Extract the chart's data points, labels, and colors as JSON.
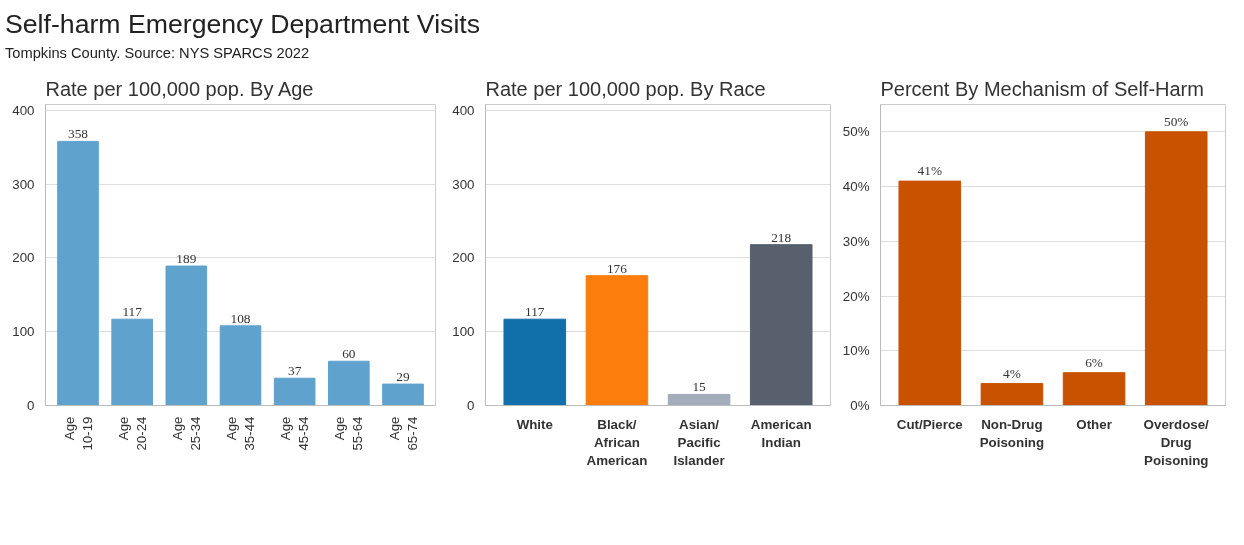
{
  "chart_data": [
    {
      "type": "other",
      "title": "Self-harm Emergency Department Visits",
      "subtitle": "Tompkins County. Source: NYS SPARCS 2022"
    },
    {
      "type": "bar",
      "title": "Rate per 100,000 pop. By Age",
      "categories": [
        "Age 10-19",
        "Age 20-24",
        "Age 25-34",
        "Age 35-44",
        "Age 45-54",
        "Age 55-64",
        "Age 65-74"
      ],
      "values": [
        358,
        117,
        189,
        108,
        37,
        60,
        29
      ],
      "color": "#5fa2cd",
      "ylim": [
        0,
        408
      ],
      "yticks": [
        0,
        100,
        200,
        300,
        400
      ],
      "grid": "y",
      "data_labels": true
    },
    {
      "type": "bar",
      "title": "Rate per 100,000 pop. By Race",
      "categories": [
        "White",
        "Black/African American",
        "Asian/Pacific Islander",
        "American Indian"
      ],
      "values": [
        117,
        176,
        15,
        218
      ],
      "colors": [
        "#1170aa",
        "#fc7d0b",
        "#a3acb9",
        "#57606c"
      ],
      "ylim": [
        0,
        408
      ],
      "yticks": [
        0,
        100,
        200,
        300,
        400
      ],
      "grid": "y",
      "data_labels": true
    },
    {
      "type": "bar",
      "title": "Percent By Mechanism of Self-Harm",
      "categories": [
        "Cut/Pierce",
        "Non-Drug Poisoning",
        "Other",
        "Overdose/Drug Poisoning"
      ],
      "values": [
        41,
        4,
        6,
        50
      ],
      "color": "#c85200",
      "value_labels": [
        "41%",
        "4%",
        "6%",
        "50%"
      ],
      "ylim": [
        0,
        55
      ],
      "yticks": [
        {
          "value": 0,
          "label": "0%"
        },
        {
          "value": 10,
          "label": "10%"
        },
        {
          "value": 20,
          "label": "20%"
        },
        {
          "value": 30,
          "label": "30%"
        },
        {
          "value": 40,
          "label": "40%"
        },
        {
          "value": 50,
          "label": "50%"
        }
      ],
      "grid": "y"
    }
  ]
}
